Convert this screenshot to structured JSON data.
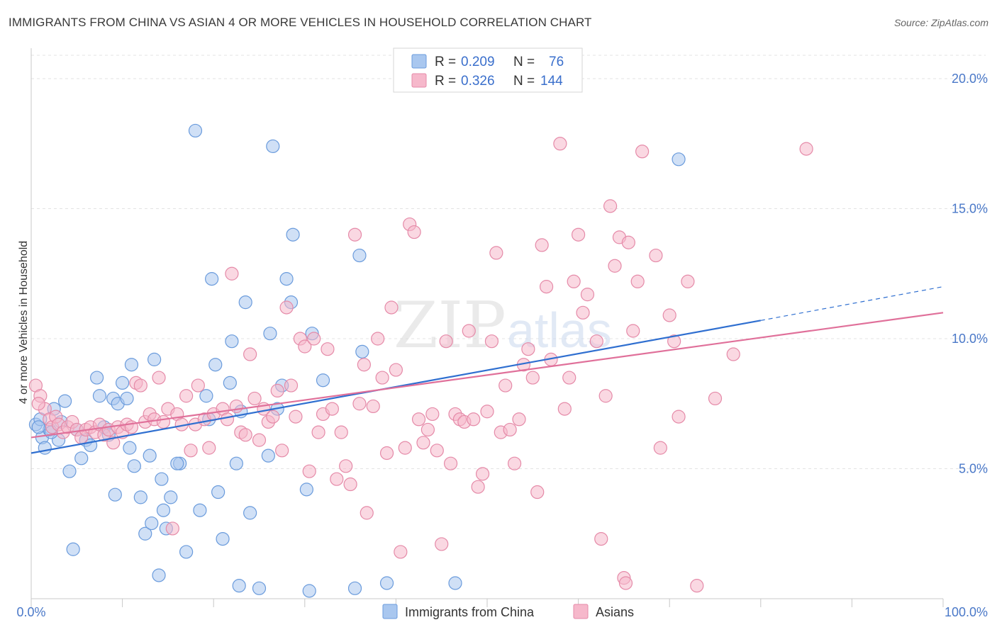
{
  "header": {
    "title": "IMMIGRANTS FROM CHINA VS ASIAN 4 OR MORE VEHICLES IN HOUSEHOLD CORRELATION CHART",
    "source": "Source: ZipAtlas.com"
  },
  "watermark": {
    "zip": "ZIP",
    "atlas": "atlas"
  },
  "legend": {
    "rows": [
      {
        "r_label": "R =",
        "r_value": "0.209",
        "n_label": "N =",
        "n_value": "76",
        "color": "#a9c7ef",
        "stroke": "#6a9bdc"
      },
      {
        "r_label": "R =",
        "r_value": "0.326",
        "n_label": "N =",
        "n_value": "144",
        "color": "#f6b8cb",
        "stroke": "#e58aa8"
      }
    ]
  },
  "bottom_legend": {
    "items": [
      {
        "label": "Immigrants from China",
        "color": "#a9c7ef",
        "stroke": "#6a9bdc"
      },
      {
        "label": "Asians",
        "color": "#f6b8cb",
        "stroke": "#e58aa8"
      }
    ]
  },
  "chart_data": {
    "type": "scatter",
    "title": "IMMIGRANTS FROM CHINA VS ASIAN 4 OR MORE VEHICLES IN HOUSEHOLD CORRELATION CHART",
    "xlabel": "",
    "ylabel": "4 or more Vehicles in Household",
    "xlim": [
      0,
      100
    ],
    "ylim": [
      0,
      20
    ],
    "x_tick_labels": [
      "0.0%",
      "100.0%"
    ],
    "y_ticks": [
      5,
      10,
      15,
      20
    ],
    "y_tick_labels": [
      "5.0%",
      "10.0%",
      "15.0%",
      "20.0%"
    ],
    "grid": true,
    "legend_position": "top-center",
    "series": [
      {
        "name": "Immigrants from China",
        "color": "#a9c7ef",
        "stroke": "#6a9bdc",
        "line_color": "#2f6fd0",
        "trend": {
          "x": [
            0,
            80
          ],
          "y": [
            5.6,
            10.7
          ],
          "dashed_extension_to": [
            100,
            12.0
          ]
        },
        "points": [
          [
            0.5,
            6.7
          ],
          [
            1.2,
            6.2
          ],
          [
            1.5,
            5.8
          ],
          [
            2.0,
            6.5
          ],
          [
            2.5,
            7.3
          ],
          [
            3.0,
            6.1
          ],
          [
            3.7,
            7.6
          ],
          [
            4.2,
            4.9
          ],
          [
            5.0,
            6.5
          ],
          [
            5.5,
            5.4
          ],
          [
            6.0,
            6.1
          ],
          [
            6.5,
            5.9
          ],
          [
            7.2,
            8.5
          ],
          [
            7.5,
            7.8
          ],
          [
            8.0,
            6.6
          ],
          [
            8.5,
            6.3
          ],
          [
            9.0,
            7.7
          ],
          [
            9.2,
            4.0
          ],
          [
            9.5,
            7.5
          ],
          [
            10.0,
            8.3
          ],
          [
            10.5,
            7.7
          ],
          [
            10.8,
            5.8
          ],
          [
            11.0,
            9.0
          ],
          [
            11.3,
            5.1
          ],
          [
            12.0,
            3.9
          ],
          [
            12.5,
            2.5
          ],
          [
            13.0,
            5.5
          ],
          [
            13.2,
            2.9
          ],
          [
            13.5,
            9.2
          ],
          [
            14.0,
            0.9
          ],
          [
            14.3,
            4.6
          ],
          [
            14.5,
            3.4
          ],
          [
            14.8,
            2.7
          ],
          [
            15.3,
            3.9
          ],
          [
            16.3,
            5.2
          ],
          [
            17.0,
            1.8
          ],
          [
            18.0,
            18.0
          ],
          [
            18.5,
            3.4
          ],
          [
            19.2,
            7.8
          ],
          [
            19.5,
            6.9
          ],
          [
            19.8,
            12.3
          ],
          [
            20.2,
            9.0
          ],
          [
            20.5,
            4.1
          ],
          [
            21.0,
            2.3
          ],
          [
            21.8,
            8.3
          ],
          [
            22.0,
            9.9
          ],
          [
            22.5,
            5.2
          ],
          [
            22.8,
            0.5
          ],
          [
            23.0,
            7.2
          ],
          [
            23.5,
            11.4
          ],
          [
            24.0,
            3.3
          ],
          [
            25.0,
            0.4
          ],
          [
            26.0,
            5.5
          ],
          [
            26.2,
            10.2
          ],
          [
            26.5,
            17.4
          ],
          [
            27.0,
            7.3
          ],
          [
            27.5,
            8.2
          ],
          [
            28.0,
            12.3
          ],
          [
            28.5,
            11.4
          ],
          [
            28.7,
            14.0
          ],
          [
            30.2,
            4.2
          ],
          [
            30.5,
            0.3
          ],
          [
            30.8,
            10.2
          ],
          [
            32.0,
            8.4
          ],
          [
            35.5,
            0.4
          ],
          [
            36.0,
            13.2
          ],
          [
            36.3,
            9.5
          ],
          [
            39.0,
            0.6
          ],
          [
            46.5,
            0.6
          ],
          [
            71.0,
            16.9
          ],
          [
            1.0,
            6.9
          ],
          [
            2.2,
            6.4
          ],
          [
            3.3,
            6.8
          ],
          [
            4.6,
            1.9
          ],
          [
            16.0,
            5.2
          ],
          [
            0.8,
            6.6
          ]
        ]
      },
      {
        "name": "Asians",
        "color": "#f6b8cb",
        "stroke": "#e58aa8",
        "line_color": "#e0709a",
        "trend": {
          "x": [
            0,
            100
          ],
          "y": [
            6.2,
            11.0
          ]
        },
        "points": [
          [
            0.5,
            8.2
          ],
          [
            1.0,
            7.8
          ],
          [
            1.5,
            7.3
          ],
          [
            2.0,
            6.9
          ],
          [
            2.3,
            6.6
          ],
          [
            2.7,
            7.0
          ],
          [
            3.0,
            6.7
          ],
          [
            3.5,
            6.4
          ],
          [
            4.0,
            6.6
          ],
          [
            4.5,
            6.8
          ],
          [
            5.0,
            6.5
          ],
          [
            5.5,
            6.2
          ],
          [
            6.0,
            6.5
          ],
          [
            6.5,
            6.6
          ],
          [
            7.0,
            6.4
          ],
          [
            7.5,
            6.7
          ],
          [
            8.0,
            6.3
          ],
          [
            8.5,
            6.5
          ],
          [
            9.0,
            6.0
          ],
          [
            9.5,
            6.6
          ],
          [
            10.0,
            6.4
          ],
          [
            10.5,
            6.7
          ],
          [
            11.0,
            6.6
          ],
          [
            11.5,
            8.3
          ],
          [
            12.0,
            8.2
          ],
          [
            12.5,
            6.8
          ],
          [
            13.0,
            7.1
          ],
          [
            13.5,
            6.9
          ],
          [
            14.0,
            8.5
          ],
          [
            14.5,
            6.8
          ],
          [
            15.0,
            7.3
          ],
          [
            15.5,
            2.7
          ],
          [
            16.0,
            7.1
          ],
          [
            16.5,
            6.7
          ],
          [
            17.0,
            7.8
          ],
          [
            17.5,
            5.7
          ],
          [
            18.0,
            6.7
          ],
          [
            18.3,
            8.2
          ],
          [
            19.0,
            6.9
          ],
          [
            19.5,
            5.8
          ],
          [
            20.0,
            7.1
          ],
          [
            21.0,
            7.3
          ],
          [
            21.5,
            6.9
          ],
          [
            22.0,
            12.5
          ],
          [
            22.5,
            7.4
          ],
          [
            23.0,
            6.4
          ],
          [
            23.5,
            6.3
          ],
          [
            24.0,
            9.4
          ],
          [
            24.5,
            7.7
          ],
          [
            25.0,
            6.1
          ],
          [
            25.5,
            7.3
          ],
          [
            26.0,
            6.8
          ],
          [
            26.5,
            7.0
          ],
          [
            27.0,
            8.0
          ],
          [
            27.5,
            5.7
          ],
          [
            28.0,
            11.2
          ],
          [
            28.5,
            8.2
          ],
          [
            29.0,
            7.0
          ],
          [
            29.5,
            10.0
          ],
          [
            30.0,
            9.7
          ],
          [
            30.5,
            4.9
          ],
          [
            31.0,
            10.0
          ],
          [
            31.5,
            6.4
          ],
          [
            32.0,
            7.1
          ],
          [
            32.5,
            9.6
          ],
          [
            33.0,
            7.3
          ],
          [
            33.5,
            4.6
          ],
          [
            34.0,
            6.4
          ],
          [
            34.5,
            5.1
          ],
          [
            35.0,
            4.4
          ],
          [
            35.5,
            14.0
          ],
          [
            36.0,
            7.5
          ],
          [
            36.5,
            9.0
          ],
          [
            36.8,
            3.3
          ],
          [
            37.5,
            7.4
          ],
          [
            38.0,
            10.0
          ],
          [
            38.5,
            8.5
          ],
          [
            39.0,
            5.6
          ],
          [
            39.5,
            11.2
          ],
          [
            40.0,
            8.8
          ],
          [
            40.5,
            1.8
          ],
          [
            41.0,
            5.8
          ],
          [
            41.5,
            14.4
          ],
          [
            42.0,
            14.1
          ],
          [
            42.5,
            6.9
          ],
          [
            43.0,
            6.0
          ],
          [
            43.5,
            6.5
          ],
          [
            44.0,
            7.1
          ],
          [
            44.5,
            5.7
          ],
          [
            45.0,
            2.1
          ],
          [
            45.5,
            9.9
          ],
          [
            46.0,
            5.2
          ],
          [
            46.5,
            7.1
          ],
          [
            47.0,
            6.9
          ],
          [
            47.5,
            6.8
          ],
          [
            48.0,
            10.3
          ],
          [
            48.5,
            6.9
          ],
          [
            49.0,
            4.3
          ],
          [
            49.5,
            4.8
          ],
          [
            50.0,
            7.2
          ],
          [
            50.5,
            9.9
          ],
          [
            51.0,
            13.3
          ],
          [
            51.5,
            6.4
          ],
          [
            52.0,
            8.2
          ],
          [
            52.5,
            6.5
          ],
          [
            53.0,
            5.2
          ],
          [
            53.5,
            6.9
          ],
          [
            54.0,
            9.0
          ],
          [
            54.5,
            9.6
          ],
          [
            55.0,
            8.5
          ],
          [
            55.5,
            4.1
          ],
          [
            56.0,
            13.6
          ],
          [
            56.5,
            12.0
          ],
          [
            57.0,
            9.2
          ],
          [
            58.0,
            17.5
          ],
          [
            58.5,
            7.3
          ],
          [
            59.0,
            8.5
          ],
          [
            59.5,
            12.2
          ],
          [
            60.0,
            14.0
          ],
          [
            60.5,
            11.0
          ],
          [
            61.0,
            11.7
          ],
          [
            62.0,
            9.9
          ],
          [
            62.5,
            2.3
          ],
          [
            63.0,
            7.8
          ],
          [
            63.5,
            15.1
          ],
          [
            64.0,
            12.8
          ],
          [
            64.5,
            13.9
          ],
          [
            65.0,
            0.8
          ],
          [
            65.2,
            0.6
          ],
          [
            65.5,
            13.7
          ],
          [
            66.0,
            10.3
          ],
          [
            66.5,
            12.2
          ],
          [
            67.0,
            17.2
          ],
          [
            68.5,
            13.2
          ],
          [
            69.0,
            5.8
          ],
          [
            70.0,
            10.9
          ],
          [
            70.5,
            9.9
          ],
          [
            71.0,
            7.0
          ],
          [
            72.0,
            12.2
          ],
          [
            73.0,
            0.5
          ],
          [
            75.0,
            7.7
          ],
          [
            77.0,
            9.4
          ],
          [
            85.0,
            17.3
          ],
          [
            0.8,
            7.5
          ]
        ]
      }
    ]
  }
}
